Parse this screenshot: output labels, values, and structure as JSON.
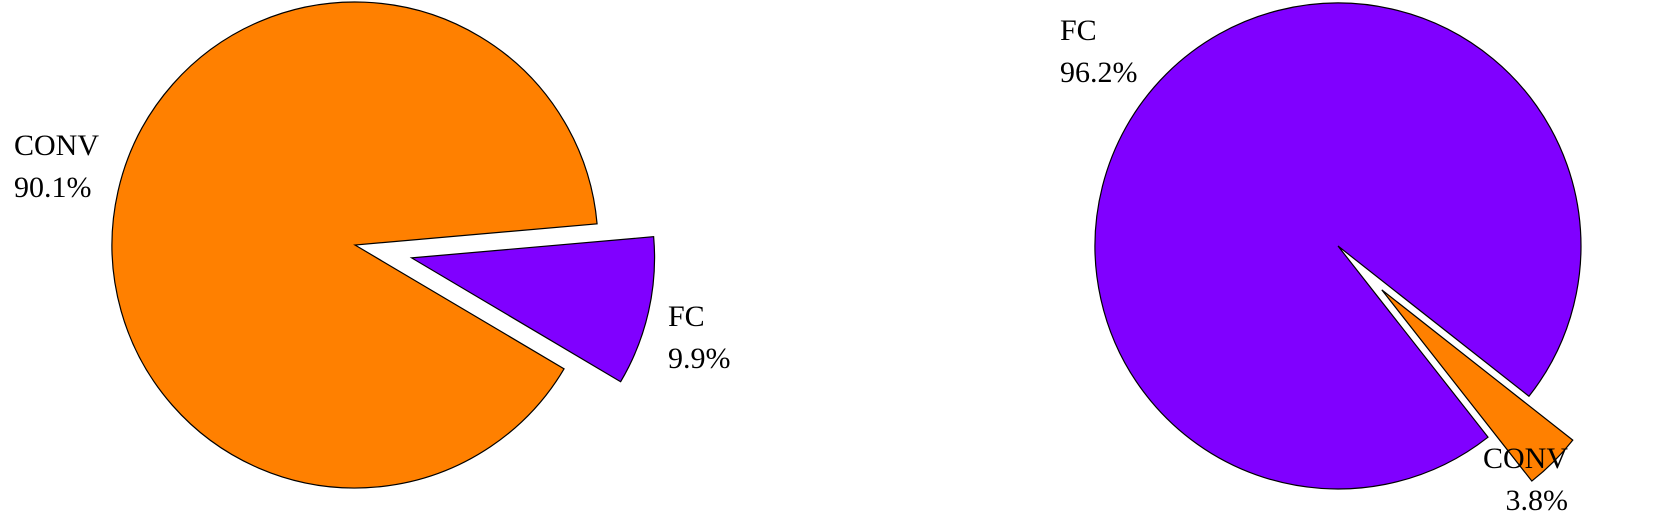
{
  "chart_data": [
    {
      "type": "pie",
      "slices": [
        {
          "label": "CONV",
          "pct_label": "90.1%",
          "value": 90.1,
          "color": "#ff8000",
          "exploded": false
        },
        {
          "label": "FC",
          "pct_label": "9.9%",
          "value": 9.9,
          "color": "#8000ff",
          "exploded": true
        }
      ]
    },
    {
      "type": "pie",
      "slices": [
        {
          "label": "FC",
          "pct_label": "96.2%",
          "value": 96.2,
          "color": "#8000ff",
          "exploded": false
        },
        {
          "label": "CONV",
          "pct_label": "3.8%",
          "value": 3.8,
          "color": "#ff8000",
          "exploded": true
        }
      ]
    }
  ]
}
